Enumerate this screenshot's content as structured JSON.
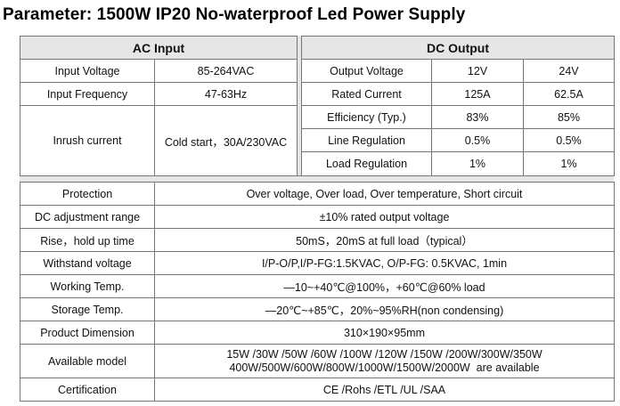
{
  "title": "Parameter: 1500W IP20 No-waterproof Led Power Supply",
  "ac_input": {
    "header": "AC Input",
    "rows": [
      {
        "label": "Input Voltage",
        "value": "85-264VAC"
      },
      {
        "label": "Input Frequency",
        "value": "47-63Hz"
      },
      {
        "label": "Inrush current",
        "value": "Cold start，30A/230VAC"
      }
    ]
  },
  "dc_output": {
    "header": "DC Output",
    "rows": [
      {
        "label": "Output Voltage",
        "v12": "12V",
        "v24": "24V"
      },
      {
        "label": "Rated Current",
        "v12": "125A",
        "v24": "62.5A"
      },
      {
        "label": "Efficiency (Typ.)",
        "v12": "83%",
        "v24": "85%"
      },
      {
        "label": "Line Regulation",
        "v12": "0.5%",
        "v24": "0.5%"
      },
      {
        "label": "Load Regulation",
        "v12": "1%",
        "v24": "1%"
      }
    ]
  },
  "specs": [
    {
      "label": "Protection",
      "value": "Over voltage, Over load, Over temperature, Short circuit"
    },
    {
      "label": "DC adjustment range",
      "value": "±10% rated output voltage"
    },
    {
      "label": "Rise，hold up time",
      "value": "50mS，20mS at full load（typical）"
    },
    {
      "label": "Withstand voltage",
      "value": "I/P-O/P,I/P-FG:1.5KVAC, O/P-FG: 0.5KVAC, 1min"
    },
    {
      "label": "Working Temp.",
      "value": "—10~+40℃@100%，+60℃@60% load"
    },
    {
      "label": "Storage Temp.",
      "value": "—20℃~+85℃，20%~95%RH(non condensing)"
    },
    {
      "label": "Product Dimension",
      "value": "310×190×95mm"
    },
    {
      "label": "Available model",
      "value_line1": "15W /30W /50W /60W /100W /120W /150W /200W/300W/350W",
      "value_line2": "400W/500W/600W/800W/1000W/1500W/2000W  are available"
    },
    {
      "label": "Certification",
      "value": "CE /Rohs /ETL /UL /SAA"
    }
  ]
}
